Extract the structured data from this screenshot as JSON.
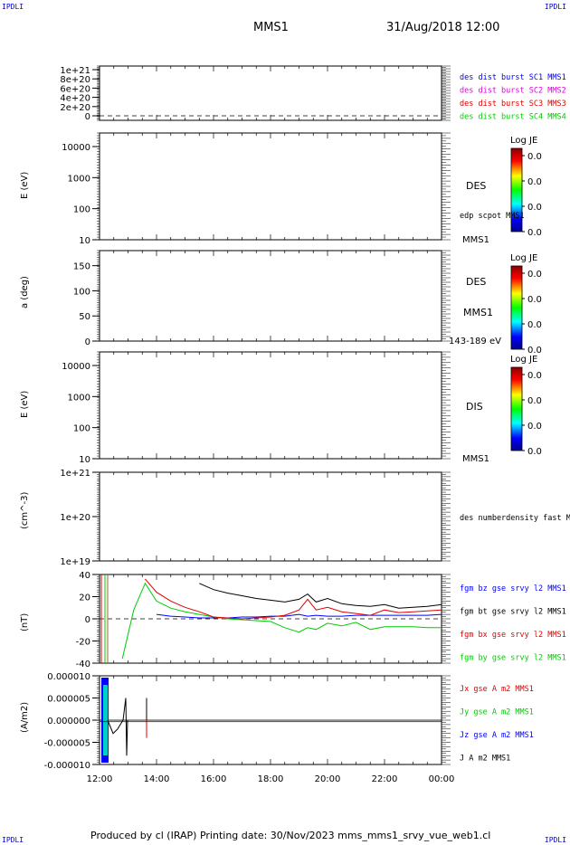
{
  "header": {
    "corner_tl": "IPDLI",
    "corner_tr": "IPDLI",
    "corner_bl": "IPDLI",
    "corner_br": "IPDLI",
    "title": "MMS1",
    "date": "31/Aug/2018 12:00"
  },
  "footer": "Produced by cl (IRAP)   Printing date: 30/Nov/2023   mms_mms1_srvy_vue_web1.cl",
  "colors": {
    "black": "#000000",
    "blue": "#0000ff",
    "magenta": "#e000e0",
    "red": "#e00000",
    "green": "#00cc00",
    "cyan": "#00cccc"
  },
  "chart_data": [
    {
      "type": "line",
      "ylabel": "",
      "yticks": [
        "1e+21",
        "8e+20",
        "6e+20",
        "4e+20",
        "2e+20",
        "0"
      ],
      "ylim": [
        0,
        1.1e+21
      ],
      "xlim": [
        "12:00",
        "00:00"
      ],
      "reference_line": 0,
      "labels": [
        {
          "text": "des dist burst SC1 MMS1",
          "color": "#0000ff"
        },
        {
          "text": "des dist burst SC2 MMS2",
          "color": "#e000e0"
        },
        {
          "text": "des dist burst SC3 MMS3",
          "color": "#e00000"
        },
        {
          "text": "des dist burst SC4 MMS4",
          "color": "#00cc00"
        }
      ]
    },
    {
      "type": "heatmap",
      "ylabel": "E (eV)",
      "yscale": "log",
      "yticks": [
        "10000",
        "1000",
        "100",
        "10"
      ],
      "right_label": "DES",
      "overlay_label": "edp scpot MMS1",
      "footer_label": "MMS1",
      "colorbar": {
        "title": "Log JE",
        "ticks": [
          "0.0",
          "0.0",
          "0.0",
          "0.0"
        ]
      }
    },
    {
      "type": "heatmap",
      "ylabel": "a (deg)",
      "yticks": [
        "150",
        "100",
        "50",
        "0"
      ],
      "ylim": [
        0,
        180
      ],
      "right_label": "DES",
      "sub_label": "MMS1",
      "footer_label": "143-189 eV",
      "colorbar": {
        "title": "Log JE",
        "ticks": [
          "0.0",
          "0.0",
          "0.0",
          "0.0"
        ]
      }
    },
    {
      "type": "heatmap",
      "ylabel": "E (eV)",
      "yscale": "log",
      "yticks": [
        "10000",
        "1000",
        "100",
        "10"
      ],
      "right_label": "DIS",
      "footer_label": "MMS1",
      "colorbar": {
        "title": "Log JE",
        "ticks": [
          "0.0",
          "0.0",
          "0.0",
          "0.0"
        ]
      }
    },
    {
      "type": "line",
      "ylabel": "(cm^-3)",
      "yscale": "log",
      "yticks": [
        "1e+21",
        "1e+20",
        "1e+19"
      ],
      "right_label": "des numberdensity fast M"
    },
    {
      "type": "line",
      "ylabel": "(nT)",
      "yticks": [
        "40",
        "20",
        "0",
        "-20",
        "-40"
      ],
      "ylim": [
        -50,
        50
      ],
      "reference_line": 0,
      "x_hours": [
        12.8,
        13.2,
        13.6,
        14.0,
        14.5,
        15.0,
        15.5,
        16.0,
        16.5,
        17.0,
        17.5,
        18.0,
        18.5,
        19.0,
        19.3,
        19.6,
        20.0,
        20.5,
        21.0,
        21.5,
        22.0,
        22.5,
        23.0,
        23.5,
        24.0
      ],
      "series": [
        {
          "name": "fgm bt gse srvy l2 MMS1",
          "color": "#000000",
          "values": [
            null,
            null,
            null,
            null,
            null,
            null,
            40,
            33,
            29,
            26,
            23,
            21,
            19,
            22,
            28,
            19,
            23,
            17,
            15,
            14,
            16,
            12,
            13,
            14,
            16
          ]
        },
        {
          "name": "fgm bx gse srvy l2 MMS1",
          "color": "#e00000",
          "values": [
            null,
            null,
            45,
            30,
            20,
            13,
            8,
            2,
            1,
            0,
            1,
            2,
            4,
            10,
            22,
            10,
            13,
            8,
            6,
            4,
            10,
            7,
            8,
            9,
            10
          ]
        },
        {
          "name": "fgm by gse srvy l2 MMS1",
          "color": "#00cc00",
          "values": [
            -45,
            10,
            40,
            20,
            12,
            8,
            5,
            2,
            0,
            -1,
            -2,
            -3,
            -10,
            -15,
            -10,
            -12,
            -5,
            -8,
            -4,
            -12,
            -9,
            -9,
            -9,
            -10,
            -10
          ]
        },
        {
          "name": "fgm bz gse srvy l2 MMS1",
          "color": "#0000ff",
          "values": [
            null,
            null,
            null,
            5,
            3,
            2,
            1,
            1,
            1,
            2,
            2,
            3,
            3,
            5,
            3,
            4,
            3,
            3,
            4,
            4,
            4,
            4,
            4,
            4,
            5
          ]
        }
      ]
    },
    {
      "type": "line",
      "ylabel": "(A/m2)",
      "yticks": [
        "0.000010",
        "0.000005",
        "0.000000",
        "-0.000005",
        "-0.000010"
      ],
      "ylim": [
        -1e-05,
        1e-05
      ],
      "reference_line": 0,
      "xlabel_ticks": [
        "12:00",
        "14:00",
        "16:00",
        "18:00",
        "20:00",
        "22:00",
        "00:00"
      ],
      "series": [
        {
          "name": "Jx gse A m2 MMS1",
          "color": "#e00000"
        },
        {
          "name": "Jy gse A m2 MMS1",
          "color": "#00cc00"
        },
        {
          "name": "Jz gse A m2 MMS1",
          "color": "#0000ff"
        },
        {
          "name": "J A m2 MMS1",
          "color": "#000000"
        }
      ]
    }
  ]
}
